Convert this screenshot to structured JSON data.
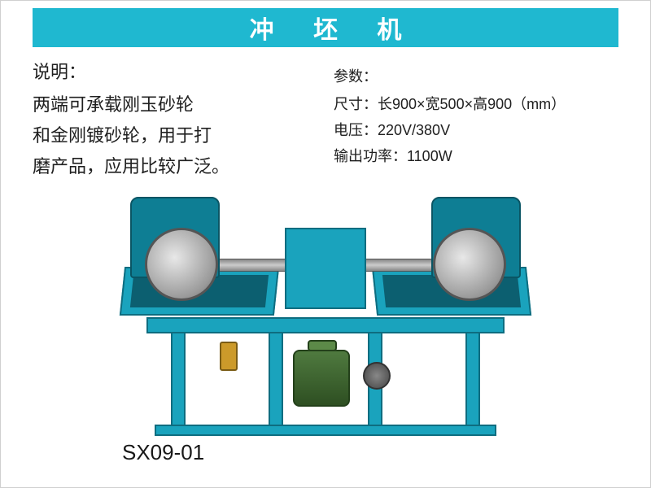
{
  "title_bar": {
    "text": "冲 坯 机",
    "bg_color": "#1fb8d0",
    "text_color": "#ffffff"
  },
  "description": {
    "label": "说明：",
    "line1": "两端可承载刚玉砂轮",
    "line2": "和金刚镀砂轮，用于打",
    "line3": "磨产品，应用比较广泛。"
  },
  "params": {
    "label": "参数：",
    "size_label": "尺寸：",
    "size_value": "长900×宽500×高900（mm）",
    "voltage_label": "电压：",
    "voltage_value": "220V/380V",
    "power_label": "输出功率：",
    "power_value": "1100W"
  },
  "model_code": "SX09-01",
  "colors": {
    "machine_primary": "#1aa3bd",
    "machine_dark": "#0e6d80",
    "motor": "#3f6b2e"
  }
}
